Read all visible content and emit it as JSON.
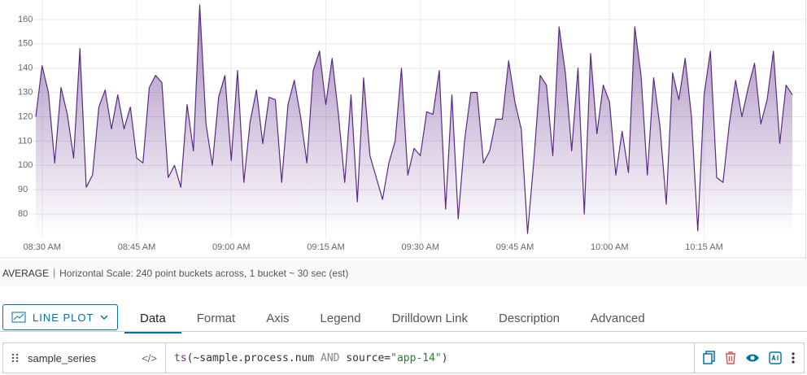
{
  "chart_data": {
    "type": "line",
    "x": [
      "08:29 AM",
      "08:30 AM",
      "08:31 AM",
      "08:32 AM",
      "08:33 AM",
      "08:34 AM",
      "08:35 AM",
      "08:36 AM",
      "08:37 AM",
      "08:38 AM",
      "08:39 AM",
      "08:40 AM",
      "08:41 AM",
      "08:42 AM",
      "08:43 AM",
      "08:44 AM",
      "08:45 AM",
      "08:46 AM",
      "08:47 AM",
      "08:48 AM",
      "08:49 AM",
      "08:50 AM",
      "08:51 AM",
      "08:52 AM",
      "08:53 AM",
      "08:54 AM",
      "08:55 AM",
      "08:56 AM",
      "08:57 AM",
      "08:58 AM",
      "08:59 AM",
      "09:00 AM",
      "09:01 AM",
      "09:02 AM",
      "09:03 AM",
      "09:04 AM",
      "09:05 AM",
      "09:06 AM",
      "09:07 AM",
      "09:08 AM",
      "09:09 AM",
      "09:10 AM",
      "09:11 AM",
      "09:12 AM",
      "09:13 AM",
      "09:14 AM",
      "09:15 AM",
      "09:16 AM",
      "09:17 AM",
      "09:18 AM",
      "09:19 AM",
      "09:20 AM",
      "09:21 AM",
      "09:22 AM",
      "09:23 AM",
      "09:24 AM",
      "09:25 AM",
      "09:26 AM",
      "09:27 AM",
      "09:28 AM",
      "09:29 AM",
      "09:30 AM",
      "09:31 AM",
      "09:32 AM",
      "09:33 AM",
      "09:34 AM",
      "09:35 AM",
      "09:36 AM",
      "09:37 AM",
      "09:38 AM",
      "09:39 AM",
      "09:40 AM",
      "09:41 AM",
      "09:42 AM",
      "09:43 AM",
      "09:44 AM",
      "09:45 AM",
      "09:46 AM",
      "09:47 AM",
      "09:48 AM",
      "09:49 AM",
      "09:50 AM",
      "09:51 AM",
      "09:52 AM",
      "09:53 AM",
      "09:54 AM",
      "09:55 AM",
      "09:56 AM",
      "09:57 AM",
      "09:58 AM",
      "09:59 AM",
      "10:00 AM",
      "10:01 AM",
      "10:02 AM",
      "10:03 AM",
      "10:04 AM",
      "10:05 AM",
      "10:06 AM",
      "10:07 AM",
      "10:08 AM",
      "10:09 AM",
      "10:10 AM",
      "10:11 AM",
      "10:12 AM",
      "10:13 AM",
      "10:14 AM",
      "10:15 AM",
      "10:16 AM",
      "10:17 AM",
      "10:18 AM",
      "10:19 AM",
      "10:20 AM",
      "10:21 AM",
      "10:22 AM",
      "10:23 AM",
      "10:24 AM",
      "10:25 AM",
      "10:26 AM",
      "10:27 AM",
      "10:28 AM",
      "10:29 AM"
    ],
    "values": [
      120,
      141,
      130,
      101,
      132,
      121,
      103,
      148,
      91,
      96,
      124,
      131,
      115,
      129,
      115,
      124,
      103,
      101,
      132,
      137,
      134,
      95,
      100,
      91,
      125,
      106,
      166,
      117,
      100,
      128,
      137,
      102,
      139,
      93,
      118,
      131,
      109,
      128,
      127,
      93,
      125,
      135,
      120,
      101,
      139,
      147,
      125,
      144,
      121,
      93,
      129,
      85,
      136,
      104,
      95,
      86,
      101,
      110,
      140,
      96,
      107,
      104,
      122,
      121,
      139,
      82,
      129,
      78,
      110,
      130,
      130,
      101,
      106,
      119,
      119,
      143,
      126,
      115,
      72,
      102,
      137,
      133,
      104,
      157,
      138,
      106,
      140,
      80,
      146,
      113,
      133,
      126,
      96,
      114,
      97,
      157,
      137,
      96,
      136,
      116,
      84,
      138,
      127,
      144,
      120,
      73,
      129,
      147,
      95,
      93,
      117,
      135,
      120,
      132,
      142,
      117,
      127,
      147,
      109,
      133,
      129
    ],
    "color": "#5b2a86",
    "ylim": [
      71,
      167
    ],
    "yticks": [
      80,
      90,
      100,
      110,
      120,
      130,
      140,
      150,
      160
    ],
    "xticks": [
      "08:30 AM",
      "08:45 AM",
      "09:00 AM",
      "09:15 AM",
      "09:30 AM",
      "09:45 AM",
      "10:00 AM",
      "10:15 AM"
    ],
    "grid": true
  },
  "summary": {
    "aggregation": "AVERAGE",
    "scale": "Horizontal Scale: 240 point buckets across, 1 bucket ~ 30 sec (est)"
  },
  "toolbar": {
    "plot_type": "LINE PLOT",
    "tabs": [
      "Data",
      "Format",
      "Axis",
      "Legend",
      "Drilldown Link",
      "Description",
      "Advanced"
    ],
    "active_tab": 0
  },
  "query": {
    "name": "sample_series",
    "editor_toggle": "</>",
    "parts": [
      "ts",
      "(~sample.process.num ",
      "AND",
      " source=",
      "\"app-14\"",
      ")"
    ]
  }
}
